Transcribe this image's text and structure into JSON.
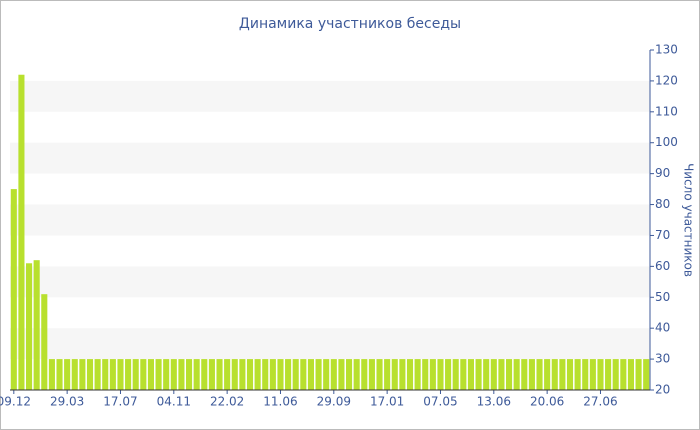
{
  "chart_data": {
    "type": "bar",
    "title": "Динамика участников беседы",
    "y_label": "Число участников",
    "categories": [
      "09.12",
      null,
      null,
      null,
      null,
      null,
      null,
      "29.03",
      null,
      null,
      null,
      null,
      null,
      null,
      "17.07",
      null,
      null,
      null,
      null,
      null,
      null,
      "04.11",
      null,
      null,
      null,
      null,
      null,
      null,
      "22.02",
      null,
      null,
      null,
      null,
      null,
      null,
      "11.06",
      null,
      null,
      null,
      null,
      null,
      null,
      "29.09",
      null,
      null,
      null,
      null,
      null,
      null,
      "17.01",
      null,
      null,
      null,
      null,
      null,
      null,
      "07.05",
      null,
      null,
      null,
      null,
      null,
      null,
      "13.06",
      null,
      null,
      null,
      null,
      null,
      null,
      "20.06",
      null,
      null,
      null,
      null,
      null,
      null,
      "27.06",
      null,
      null,
      null,
      null,
      null,
      null
    ],
    "values": [
      85,
      122,
      61,
      62,
      51,
      30,
      30,
      30,
      30,
      30,
      30,
      30,
      30,
      30,
      30,
      30,
      30,
      30,
      30,
      30,
      30,
      30,
      30,
      30,
      30,
      30,
      30,
      30,
      30,
      30,
      30,
      30,
      30,
      30,
      30,
      30,
      30,
      30,
      30,
      30,
      30,
      30,
      30,
      30,
      30,
      30,
      30,
      30,
      30,
      30,
      30,
      30,
      30,
      30,
      30,
      30,
      30,
      30,
      30,
      30,
      30,
      30,
      30,
      30,
      30,
      30,
      30,
      30,
      30,
      30,
      30,
      30,
      30,
      30,
      30,
      30,
      30,
      30,
      30,
      30,
      30,
      30,
      30,
      30
    ],
    "color": "#b8e02e",
    "ylim": [
      20,
      130
    ],
    "yticks": [
      20,
      30,
      40,
      50,
      60,
      70,
      80,
      90,
      100,
      110,
      120,
      130
    ],
    "y_axis_side": "right",
    "grid": "bands"
  }
}
